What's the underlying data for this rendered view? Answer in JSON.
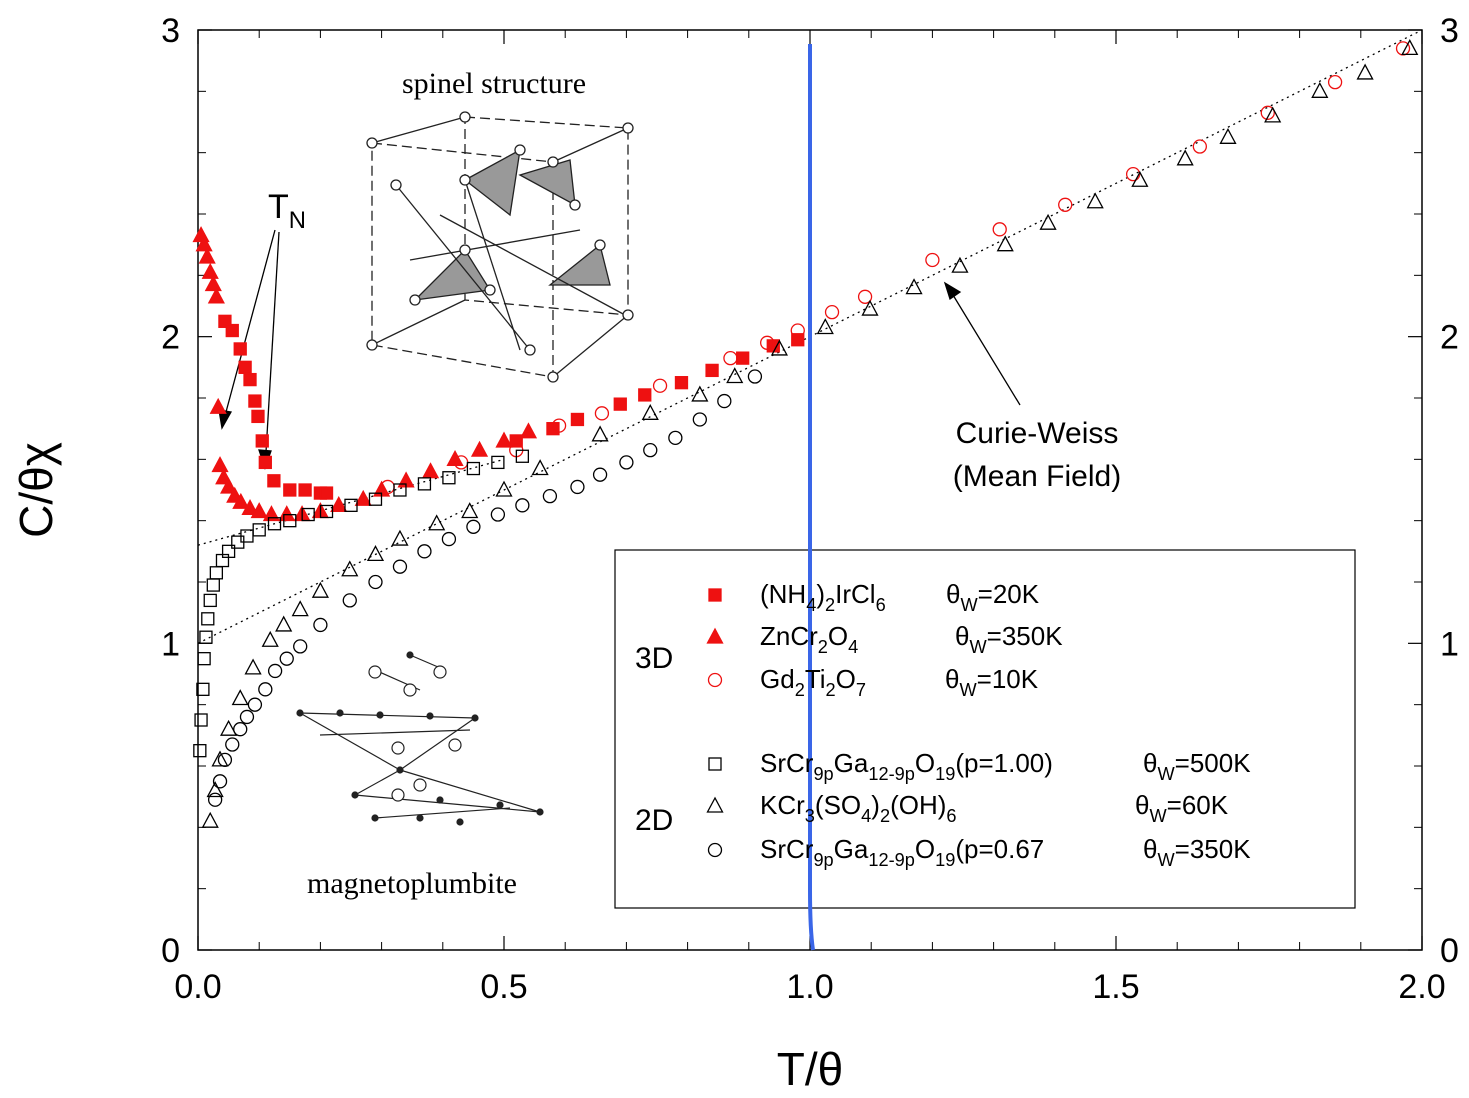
{
  "chart_data": {
    "type": "scatter",
    "x_label": "T/θ",
    "y_label": "C/θχ",
    "xlim": [
      0,
      2
    ],
    "ylim": [
      0,
      3
    ],
    "xticks": [
      {
        "value": 0,
        "label": "0.0"
      },
      0.5,
      {
        "value": 1,
        "label": "1.0"
      },
      1.5,
      {
        "value": 2,
        "label": "2.0"
      }
    ],
    "yticks": [
      0,
      1,
      2,
      3
    ],
    "xminorticks": [
      0.1,
      0.2,
      0.3,
      0.4,
      0.6,
      0.7,
      0.8,
      0.9,
      1.1,
      1.2,
      1.3,
      1.4,
      1.6,
      1.7,
      1.8,
      1.9
    ],
    "yminorticks": [
      0.2,
      0.4,
      0.6,
      0.8,
      1.2,
      1.4,
      1.6,
      1.8,
      2.2,
      2.4,
      2.6,
      2.8
    ],
    "right_axis_labels": true,
    "vertical_line": {
      "x": 1,
      "color": "#3a66e8"
    },
    "reference_lines": [
      {
        "x": [
          0,
          2
        ],
        "y": [
          1,
          3
        ]
      },
      {
        "x": [
          0,
          0.5
        ],
        "y": [
          1.32,
          1.6
        ]
      }
    ],
    "series": [
      {
        "name": [
          "(NH",
          "4",
          ")",
          "2",
          "IrCl",
          "6"
        ],
        "theta": [
          "θ",
          "W",
          "=20K"
        ],
        "marker": "square",
        "filled": true,
        "color": "#ee1111",
        "x": [
          0.044,
          0.056,
          0.069,
          0.077,
          0.085,
          0.093,
          0.098,
          0.105,
          0.11,
          0.124,
          0.15,
          0.175,
          0.2,
          0.21,
          0.52,
          0.58,
          0.62,
          0.69,
          0.73,
          0.79,
          0.84,
          0.89,
          0.94,
          0.98
        ],
        "values": [
          2.05,
          2.02,
          1.96,
          1.9,
          1.86,
          1.79,
          1.74,
          1.66,
          1.59,
          1.53,
          1.5,
          1.5,
          1.49,
          1.49,
          1.66,
          1.7,
          1.73,
          1.78,
          1.81,
          1.85,
          1.89,
          1.93,
          1.97,
          1.99
        ]
      },
      {
        "name": [
          "ZnCr",
          "2",
          "O",
          "4"
        ],
        "theta": [
          "θ",
          "W",
          "=350K"
        ],
        "marker": "triangle",
        "filled": true,
        "color": "#ee1111",
        "x": [
          0.005,
          0.01,
          0.015,
          0.02,
          0.025,
          0.03,
          0.033,
          0.036,
          0.042,
          0.05,
          0.06,
          0.07,
          0.085,
          0.1,
          0.12,
          0.145,
          0.17,
          0.2,
          0.23,
          0.27,
          0.3,
          0.34,
          0.38,
          0.42,
          0.46,
          0.5,
          0.54
        ],
        "values": [
          2.33,
          2.3,
          2.26,
          2.21,
          2.17,
          2.13,
          1.77,
          1.58,
          1.54,
          1.51,
          1.48,
          1.46,
          1.44,
          1.43,
          1.42,
          1.42,
          1.42,
          1.43,
          1.45,
          1.47,
          1.5,
          1.53,
          1.56,
          1.6,
          1.63,
          1.66,
          1.69
        ]
      },
      {
        "name": [
          "Gd",
          "2",
          "Ti",
          "2",
          "O",
          "7"
        ],
        "theta": [
          "θ",
          "W",
          "=10K"
        ],
        "marker": "circle",
        "filled": false,
        "color": "#ee1111",
        "x": [
          0.31,
          0.43,
          0.52,
          0.59,
          0.66,
          0.755,
          0.87,
          0.93,
          0.98,
          1.036,
          1.09,
          1.2,
          1.31,
          1.417,
          1.528,
          1.637,
          1.748,
          1.858,
          1.969
        ],
        "values": [
          1.51,
          1.59,
          1.63,
          1.71,
          1.75,
          1.84,
          1.93,
          1.98,
          2.02,
          2.08,
          2.13,
          2.25,
          2.35,
          2.43,
          2.53,
          2.62,
          2.73,
          2.83,
          2.94
        ]
      },
      {
        "name": [
          "SrCr",
          "9p",
          "Ga",
          "12-9p",
          "O",
          "19",
          "(p=1.00)"
        ],
        "theta": [
          "θ",
          "W",
          "=500K"
        ],
        "marker": "square",
        "filled": false,
        "color": "#000000",
        "x": [
          0.003,
          0.005,
          0.008,
          0.01,
          0.013,
          0.016,
          0.02,
          0.025,
          0.03,
          0.04,
          0.05,
          0.065,
          0.08,
          0.1,
          0.125,
          0.15,
          0.18,
          0.21,
          0.25,
          0.29,
          0.33,
          0.37,
          0.41,
          0.45,
          0.49,
          0.53
        ],
        "values": [
          0.65,
          0.75,
          0.85,
          0.95,
          1.02,
          1.08,
          1.14,
          1.19,
          1.23,
          1.27,
          1.3,
          1.33,
          1.35,
          1.37,
          1.39,
          1.4,
          1.42,
          1.43,
          1.45,
          1.47,
          1.5,
          1.52,
          1.54,
          1.57,
          1.59,
          1.61
        ]
      },
      {
        "name": [
          "KCr",
          "3",
          "(SO",
          "4",
          ")",
          "2",
          "(OH)",
          "6"
        ],
        "theta": [
          "θ",
          "W",
          "=60K"
        ],
        "marker": "triangle",
        "filled": false,
        "color": "#000000",
        "x": [
          0.02,
          0.028,
          0.036,
          0.05,
          0.069,
          0.09,
          0.118,
          0.14,
          0.167,
          0.2,
          0.248,
          0.29,
          0.33,
          0.39,
          0.444,
          0.5,
          0.559,
          0.657,
          0.739,
          0.82,
          0.877,
          0.95,
          1.025,
          1.098,
          1.17,
          1.245,
          1.319,
          1.389,
          1.466,
          1.539,
          1.613,
          1.683,
          1.756,
          1.833,
          1.907,
          1.98
        ],
        "values": [
          0.42,
          0.52,
          0.62,
          0.72,
          0.82,
          0.92,
          1.01,
          1.06,
          1.11,
          1.17,
          1.24,
          1.29,
          1.34,
          1.39,
          1.43,
          1.5,
          1.57,
          1.68,
          1.75,
          1.81,
          1.87,
          1.96,
          2.03,
          2.09,
          2.16,
          2.23,
          2.3,
          2.37,
          2.44,
          2.51,
          2.58,
          2.65,
          2.72,
          2.8,
          2.86,
          2.94
        ]
      },
      {
        "name": [
          "SrCr",
          "9p",
          "Ga",
          "12-9p",
          "O",
          "19",
          "(p=0.67"
        ],
        "theta": [
          "θ",
          "W",
          "=350K"
        ],
        "marker": "circle",
        "filled": false,
        "color": "#000000",
        "x": [
          0.028,
          0.036,
          0.044,
          0.056,
          0.069,
          0.08,
          0.093,
          0.11,
          0.126,
          0.145,
          0.167,
          0.2,
          0.248,
          0.29,
          0.33,
          0.37,
          0.41,
          0.45,
          0.49,
          0.53,
          0.575,
          0.62,
          0.657,
          0.7,
          0.739,
          0.78,
          0.82,
          0.86,
          0.91
        ],
        "values": [
          0.49,
          0.55,
          0.62,
          0.67,
          0.72,
          0.76,
          0.8,
          0.85,
          0.91,
          0.95,
          0.99,
          1.06,
          1.14,
          1.2,
          1.25,
          1.3,
          1.34,
          1.38,
          1.42,
          1.45,
          1.48,
          1.51,
          1.55,
          1.59,
          1.63,
          1.67,
          1.73,
          1.79,
          1.87
        ]
      }
    ],
    "legend_groups": [
      "3D",
      "2D"
    ],
    "annotations": {
      "tn": [
        "T",
        "N"
      ],
      "curie_weiss": [
        "Curie-Weiss",
        "(Mean Field)"
      ],
      "spinel": "spinel structure",
      "magnetoplumbite": "magnetoplumbite"
    }
  }
}
